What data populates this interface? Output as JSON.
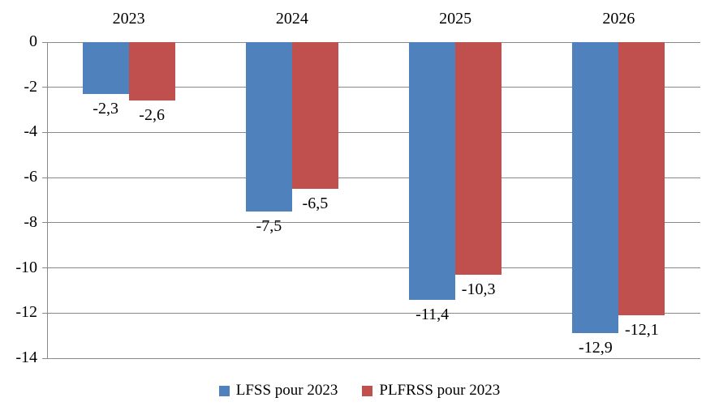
{
  "chart_data": {
    "type": "bar",
    "orientation": "vertical",
    "categories": [
      "2023",
      "2024",
      "2025",
      "2026"
    ],
    "series": [
      {
        "name": "LFSS pour 2023",
        "color": "#4F81BD",
        "values": [
          -2.3,
          -7.5,
          -11.4,
          -12.9
        ],
        "value_labels": [
          "-2,3",
          "-7,5",
          "-11,4",
          "-12,9"
        ]
      },
      {
        "name": "PLFRSS pour 2023",
        "color": "#C0504D",
        "values": [
          -2.6,
          -6.5,
          -10.3,
          -12.1
        ],
        "value_labels": [
          "-2,6",
          "-6,5",
          "-10,3",
          "-12,1"
        ]
      }
    ],
    "title": "",
    "xlabel": "",
    "ylabel": "",
    "ylim": [
      -14,
      0
    ],
    "yticks": [
      0,
      -2,
      -4,
      -6,
      -8,
      -10,
      -12,
      -14
    ],
    "ytick_labels": [
      "0",
      "-2",
      "-4",
      "-6",
      "-8",
      "-10",
      "-12",
      "-14"
    ],
    "grid": true,
    "category_labels_position": "top",
    "value_labels_position": "outside-end",
    "legend_position": "bottom",
    "gridline_color": "#8A8A8A",
    "axis_color": "#8A8A8A",
    "text_color": "#000000",
    "background_color": "#FFFFFF"
  }
}
